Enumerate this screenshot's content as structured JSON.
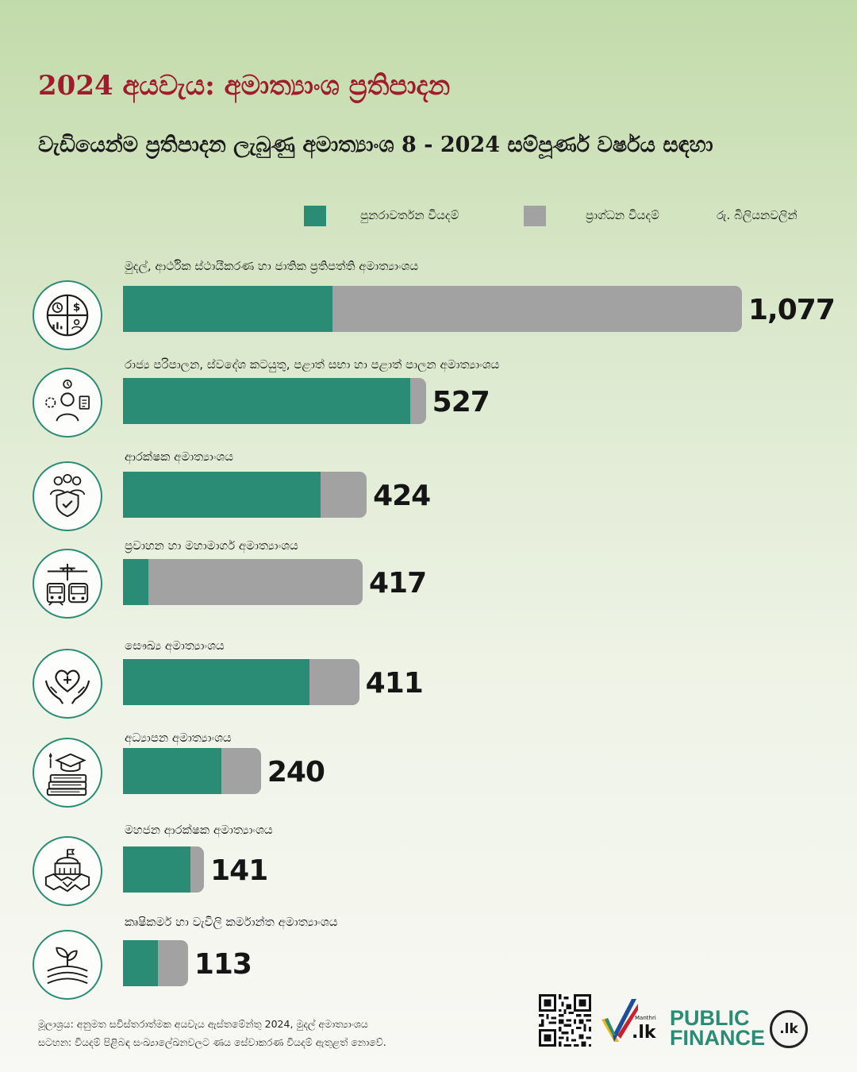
{
  "header": {
    "title": "2024 අයවැය: අමාත්‍යාංශ ප්‍රතිපාදන",
    "subtitle": "වැඩියෙන්ම ප්‍රතිපාදන ලැබුණු අමාත්‍යාංශ  8 - 2024 සම්පූර්ණ වර්ෂය සඳහා"
  },
  "legend": {
    "recurrent_label": "පුනරාවර්තන වියදම්",
    "capital_label": "ප්‍රාග්ධන වියදම්",
    "unit_label": "රු. බිලියනවලින්",
    "recurrent_color": "#2a8c74",
    "capital_color": "#a2a2a2"
  },
  "chart_data": {
    "type": "bar",
    "orientation": "horizontal",
    "stacked": true,
    "unit": "රු. බිලියනවලින්",
    "categories": [
      "මුදල්, ආර්ථික ස්ථායීකරණ හා ජාතික ප්‍රතිපත්ති අමාත්‍යාංශය",
      "රාජ්‍ය පරිපාලන, ස්වදේශ කටයුතු, පළාත් සභා හා පළාත් පාලන අමාත්‍යාංශය",
      "ආරක්ෂක අමාත්‍යාංශය",
      "ප්‍රවාහන හා මහාමාර්ග අමාත්‍යාංශය",
      "සෞඛ්‍ය අමාත්‍යාංශය",
      "අධ්‍යාපන අමාත්‍යාංශය",
      "මහජන ආරක්ෂක අමාත්‍යාංශය",
      "කෘෂිකර්ම හා වැවිලි කර්මාන්ත අමාත්‍යාංශය"
    ],
    "totals": [
      1077,
      527,
      424,
      417,
      411,
      240,
      141,
      113
    ],
    "total_labels": [
      "1,077",
      "527",
      "424",
      "417",
      "411",
      "240",
      "141",
      "113"
    ],
    "series": [
      {
        "name": "පුනරාවර්තන වියදම්",
        "values": [
          364,
          500,
          344,
          44,
          325,
          171,
          118,
          61
        ]
      },
      {
        "name": "ප්‍රාග්ධන වියදම්",
        "values": [
          713,
          27,
          80,
          373,
          86,
          69,
          23,
          52
        ]
      }
    ],
    "icons": [
      "finance-pie-icon",
      "public-admin-icon",
      "defence-shield-icon",
      "transport-icon",
      "health-heart-icon",
      "education-books-icon",
      "public-security-icon",
      "agriculture-sprout-icon"
    ]
  },
  "footer": {
    "source": "මූලාශ්‍රය: අනුමත සවිස්තරාත්මක අයවැය ඇස්තමේන්තු 2024, මුදල් අමාත්‍යාංශය",
    "note": "සටහන: වියදම් පිළිබඳ සංඛ්‍යාලේඛනවලට ණය සේවාකරණ වියදම් ඇතුළත් නොවේ."
  },
  "branding": {
    "manthri_text": "Manthri",
    "manthri_lk": ".lk",
    "pf_line1": "PUBLIC",
    "pf_line2": "FINANCE",
    "pf_seal": ".lk"
  }
}
